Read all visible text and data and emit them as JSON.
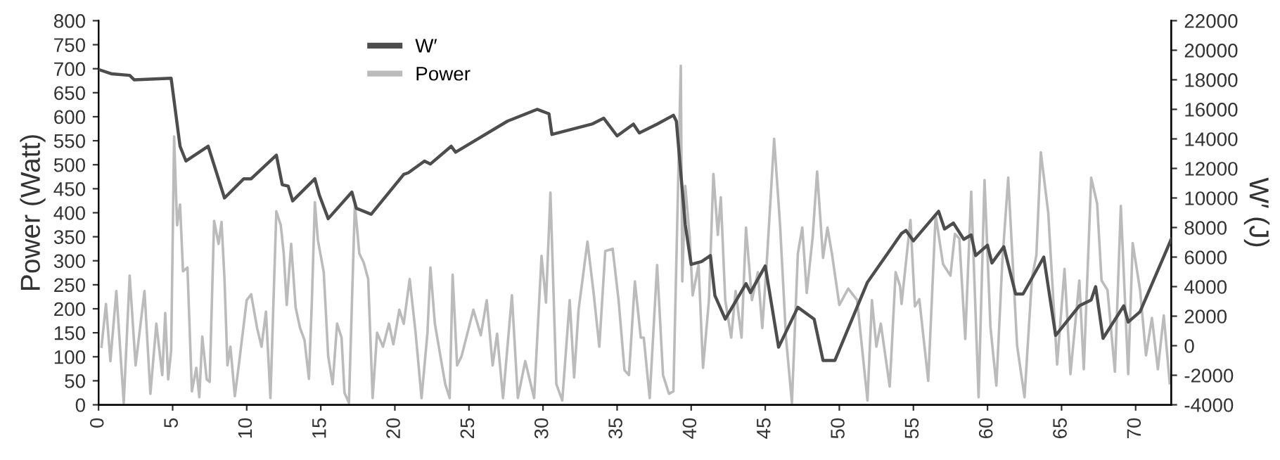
{
  "chart_data": {
    "type": "line",
    "xlim": [
      0,
      72.4
    ],
    "xticks": [
      0,
      5,
      10,
      15,
      20,
      25,
      30,
      35,
      40,
      45,
      50,
      55,
      60,
      65,
      70
    ],
    "ylim": [
      0,
      800
    ],
    "yticks": [
      0,
      50,
      100,
      150,
      200,
      250,
      300,
      350,
      400,
      450,
      500,
      550,
      600,
      650,
      700,
      750,
      800
    ],
    "y2lim": [
      -4000,
      22000
    ],
    "y2ticks": [
      -4000,
      -2000,
      0,
      2000,
      4000,
      6000,
      8000,
      10000,
      12000,
      14000,
      16000,
      18000,
      20000,
      22000
    ],
    "ylabel": "Power (Watt)",
    "y2label": "W′ (J)",
    "legend": "top",
    "grid": false,
    "marker": "none",
    "line_style": "solid",
    "series": [
      {
        "name": "W′",
        "color": "#4d4d4d",
        "axis": "y2",
        "x": [
          0,
          0.9,
          2.1,
          2.4,
          4.9,
          5.5,
          5.9,
          7.4,
          8.5,
          9.8,
          10.3,
          12.0,
          12.4,
          12.8,
          13.1,
          14.1,
          14.6,
          14.9,
          15.5,
          17.1,
          17.4,
          18.4,
          20.6,
          20.9,
          22.0,
          22.4,
          23.8,
          24.1,
          27.6,
          29.6,
          30.4,
          30.6,
          33.3,
          34.1,
          35.0,
          36.1,
          36.5,
          37.7,
          38.8,
          39.0,
          39.6,
          40.0,
          40.7,
          41.3,
          41.6,
          42.3,
          43.7,
          44.0,
          45.0,
          45.9,
          47.2,
          48.3,
          48.9,
          49.7,
          51.9,
          54.2,
          54.5,
          55.0,
          56.7,
          57.1,
          57.7,
          58.4,
          58.9,
          59.2,
          60.0,
          60.3,
          61.1,
          61.9,
          62.4,
          63.8,
          64.6,
          66.2,
          67.0,
          67.3,
          67.8,
          69.2,
          69.5,
          70.3,
          72.4
        ],
        "values": [
          18700,
          18400,
          18300,
          18000,
          18100,
          13500,
          12500,
          13500,
          10000,
          11300,
          11300,
          12900,
          10900,
          10800,
          9800,
          10800,
          11300,
          10200,
          8600,
          10400,
          9300,
          8900,
          11600,
          11700,
          12500,
          12300,
          13500,
          13100,
          15200,
          16000,
          15700,
          14300,
          15000,
          15400,
          14200,
          15000,
          14400,
          15000,
          15600,
          15200,
          8200,
          5500,
          5700,
          6100,
          3400,
          1800,
          4200,
          3600,
          5400,
          -100,
          2600,
          1800,
          -1000,
          -1000,
          4300,
          7600,
          7800,
          7100,
          9100,
          7900,
          8300,
          7200,
          7500,
          6100,
          6800,
          5600,
          6700,
          3500,
          3500,
          6000,
          700,
          2700,
          3100,
          4000,
          500,
          2700,
          1600,
          2300,
          7200
        ]
      },
      {
        "name": "Power",
        "color": "#bbbbbb",
        "axis": "y",
        "x": [
          0.2,
          0.5,
          0.8,
          1.2,
          1.7,
          2.1,
          2.5,
          3.1,
          3.5,
          3.9,
          4.3,
          4.5,
          4.7,
          4.9,
          5.1,
          5.3,
          5.5,
          5.7,
          6.0,
          6.3,
          6.6,
          6.8,
          7.0,
          7.3,
          7.5,
          7.8,
          8.1,
          8.3,
          8.5,
          8.7,
          8.9,
          9.2,
          9.5,
          10.0,
          10.3,
          10.7,
          11.0,
          11.3,
          11.6,
          12.0,
          12.3,
          12.5,
          12.7,
          13.0,
          13.3,
          13.6,
          13.9,
          14.2,
          14.4,
          14.6,
          14.8,
          15.2,
          15.5,
          15.8,
          16.1,
          16.4,
          16.6,
          16.9,
          17.3,
          17.6,
          17.9,
          18.2,
          18.5,
          18.8,
          19.2,
          19.6,
          19.9,
          20.3,
          20.6,
          21.0,
          21.4,
          21.8,
          22.2,
          22.4,
          22.7,
          23.4,
          23.7,
          23.9,
          24.2,
          24.5,
          25.3,
          25.8,
          26.2,
          26.6,
          26.9,
          27.3,
          27.9,
          28.3,
          28.8,
          29.4,
          29.9,
          30.2,
          30.5,
          30.9,
          31.3,
          31.8,
          32.1,
          32.4,
          33.0,
          33.4,
          33.8,
          34.2,
          34.7,
          35.1,
          35.5,
          35.8,
          36.2,
          36.6,
          36.8,
          37.2,
          37.7,
          38.1,
          38.5,
          38.8,
          39.3,
          39.4,
          39.6,
          39.9,
          40.1,
          40.5,
          40.8,
          41.2,
          41.5,
          41.8,
          42.0,
          42.3,
          42.7,
          43.0,
          43.4,
          43.7,
          44.1,
          44.5,
          44.8,
          45.1,
          45.6,
          46.0,
          46.4,
          46.8,
          47.2,
          47.5,
          47.8,
          48.2,
          48.5,
          48.9,
          49.2,
          49.5,
          50.0,
          50.6,
          51.2,
          51.9,
          52.2,
          52.5,
          52.8,
          53.4,
          53.8,
          54.1,
          54.2,
          54.8,
          55.1,
          55.4,
          56.0,
          56.5,
          57.0,
          57.5,
          57.8,
          58.1,
          58.5,
          58.9,
          59.4,
          59.8,
          60.2,
          60.6,
          61.0,
          61.4,
          62.0,
          62.5,
          63.0,
          63.3,
          63.6,
          64.1,
          64.7,
          65.2,
          65.6,
          66.2,
          66.5,
          67.0,
          67.4,
          67.7,
          68.1,
          68.6,
          69.0,
          69.5,
          69.8,
          70.3,
          70.7,
          71.1,
          71.5,
          71.9,
          72.3
        ],
        "values": [
          121,
          210,
          91,
          237,
          4,
          269,
          82,
          237,
          23,
          169,
          62,
          191,
          53,
          113,
          559,
          374,
          417,
          278,
          286,
          28,
          77,
          16,
          142,
          53,
          48,
          383,
          335,
          381,
          262,
          82,
          121,
          18,
          91,
          218,
          230,
          160,
          121,
          194,
          14,
          403,
          374,
          315,
          208,
          335,
          203,
          160,
          135,
          54,
          218,
          422,
          344,
          276,
          101,
          43,
          169,
          140,
          25,
          4,
          417,
          315,
          296,
          262,
          14,
          150,
          121,
          169,
          126,
          198,
          169,
          262,
          150,
          14,
          150,
          286,
          169,
          43,
          14,
          271,
          82,
          101,
          198,
          145,
          218,
          82,
          148,
          14,
          228,
          14,
          91,
          14,
          310,
          213,
          442,
          43,
          9,
          218,
          57,
          198,
          340,
          237,
          121,
          320,
          325,
          218,
          72,
          62,
          257,
          140,
          140,
          14,
          291,
          62,
          23,
          28,
          706,
          257,
          456,
          349,
          228,
          291,
          77,
          218,
          481,
          354,
          432,
          218,
          140,
          237,
          140,
          369,
          218,
          276,
          160,
          296,
          554,
          374,
          140,
          4,
          315,
          369,
          233,
          349,
          486,
          306,
          369,
          315,
          208,
          242,
          218,
          9,
          218,
          121,
          169,
          38,
          276,
          247,
          210,
          385,
          205,
          220,
          50,
          395,
          293,
          269,
          356,
          346,
          137,
          444,
          16,
          468,
          162,
          40,
          298,
          473,
          123,
          16,
          264,
          312,
          526,
          400,
          84,
          283,
          64,
          259,
          74,
          473,
          419,
          259,
          239,
          69,
          414,
          64,
          337,
          239,
          103,
          181,
          74,
          186,
          45
        ]
      }
    ]
  }
}
